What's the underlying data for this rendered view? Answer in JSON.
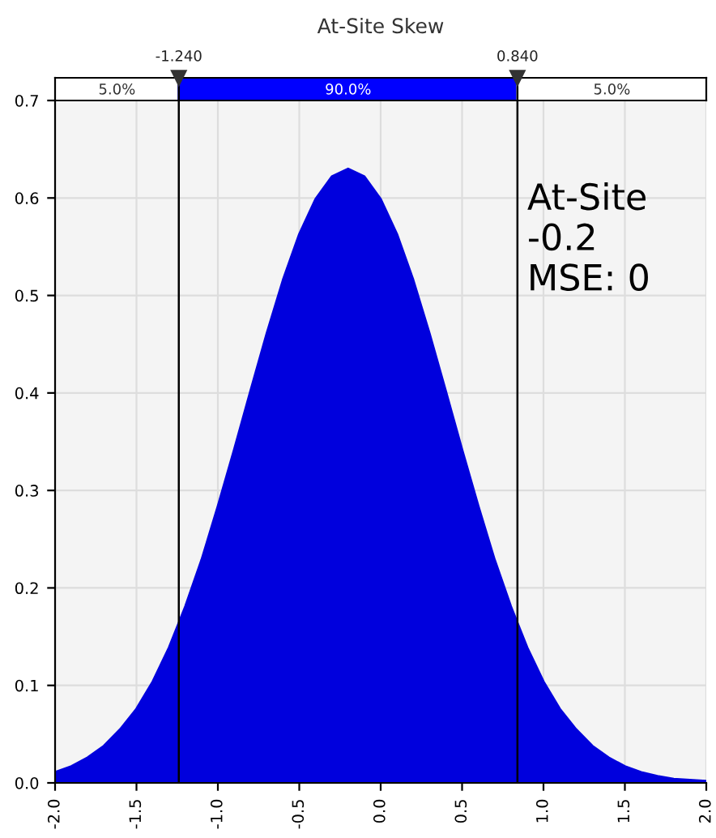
{
  "chart_data": {
    "type": "area",
    "title": "At-Site Skew",
    "x": [
      -2.0,
      -1.9,
      -1.8,
      -1.7,
      -1.6,
      -1.5,
      -1.4,
      -1.3,
      -1.2,
      -1.1,
      -1.0,
      -0.9,
      -0.8,
      -0.7,
      -0.6,
      -0.5,
      -0.4,
      -0.3,
      -0.2,
      -0.1,
      0.0,
      0.1,
      0.2,
      0.3,
      0.4,
      0.5,
      0.6,
      0.7,
      0.8,
      0.9,
      1.0,
      1.1,
      1.2,
      1.3,
      1.4,
      1.5,
      1.6,
      1.7,
      1.8,
      1.9,
      2.0
    ],
    "series": [
      {
        "color": "#0000dd",
        "values": [
          0.011,
          0.017,
          0.026,
          0.038,
          0.055,
          0.076,
          0.104,
          0.139,
          0.181,
          0.229,
          0.284,
          0.342,
          0.402,
          0.461,
          0.516,
          0.563,
          0.599,
          0.622,
          0.63,
          0.622,
          0.599,
          0.563,
          0.516,
          0.461,
          0.402,
          0.342,
          0.284,
          0.229,
          0.181,
          0.139,
          0.104,
          0.076,
          0.055,
          0.038,
          0.026,
          0.017,
          0.011,
          0.007,
          0.004,
          0.003,
          0.002
        ]
      }
    ],
    "xlim": [
      -2.0,
      2.0
    ],
    "xticks": [
      {
        "value": -2.0,
        "label": "-2.0"
      },
      {
        "value": -1.5,
        "label": "-1.5"
      },
      {
        "value": -1.0,
        "label": "-1.0"
      },
      {
        "value": -0.5,
        "label": "-0.5"
      },
      {
        "value": 0.0,
        "label": "0.0"
      },
      {
        "value": 0.5,
        "label": "0.5"
      },
      {
        "value": 1.0,
        "label": "1.0"
      },
      {
        "value": 1.5,
        "label": "1.5"
      },
      {
        "value": 2.0,
        "label": "2.0"
      }
    ],
    "ylim": [
      0.0,
      0.7
    ],
    "yticks": [
      {
        "value": 0.0,
        "label": "0.0"
      },
      {
        "value": 0.1,
        "label": "0.1"
      },
      {
        "value": 0.2,
        "label": "0.2"
      },
      {
        "value": 0.3,
        "label": "0.3"
      },
      {
        "value": 0.4,
        "label": "0.4"
      },
      {
        "value": 0.5,
        "label": "0.5"
      },
      {
        "value": 0.6,
        "label": "0.6"
      },
      {
        "value": 0.7,
        "label": "0.7"
      }
    ],
    "ref_lines": [
      {
        "axis": "x",
        "value": -1.24,
        "label": "-1.240",
        "color": "#000000"
      },
      {
        "axis": "x",
        "value": 0.84,
        "label": "0.840",
        "color": "#000000"
      }
    ],
    "annotations": [
      "5.0%",
      "90.0%",
      "5.0%",
      "At-Site\n-0.2\nMSE: 0"
    ],
    "grid": true
  }
}
